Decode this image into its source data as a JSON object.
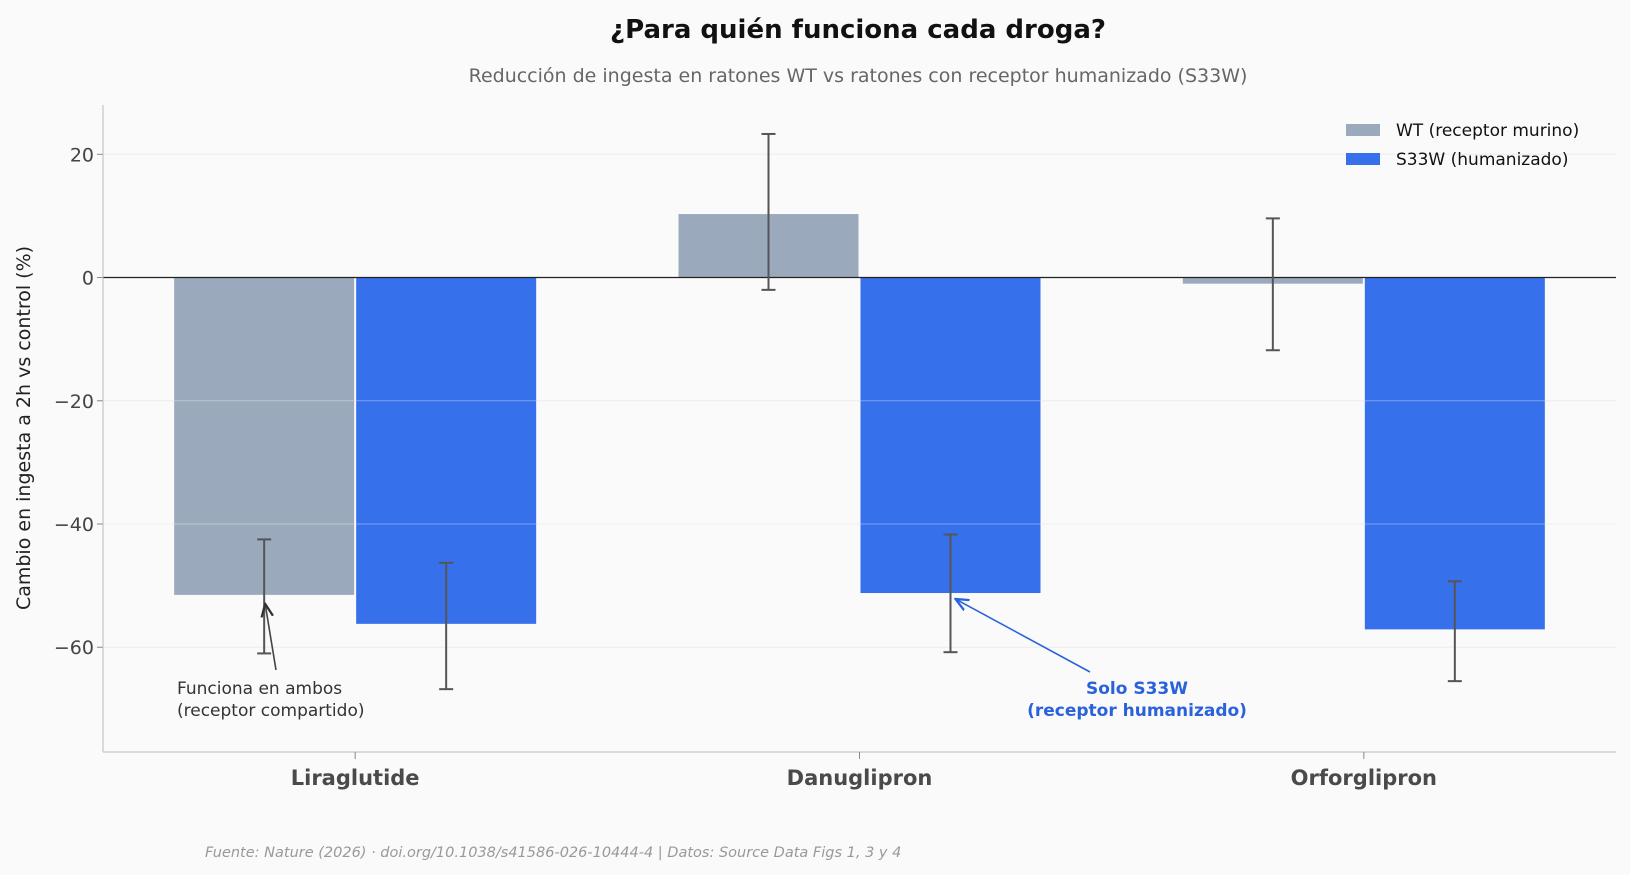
{
  "chart_data": {
    "type": "bar",
    "title": "¿Para quién funciona cada droga?",
    "subtitle": "Reducción de ingesta en ratones WT vs ratones con receptor humanizado (S33W)",
    "ylabel": "Cambio en ingesta a 2h vs control (%)",
    "xlabel": "",
    "categories": [
      "Liraglutide",
      "Danuglipron",
      "Orforglipron"
    ],
    "ylim": [
      -77,
      28
    ],
    "yticks": [
      20,
      0,
      -20,
      -40,
      -60
    ],
    "ytick_labels": [
      "20",
      "0",
      "−20",
      "−40",
      "−60"
    ],
    "grid": true,
    "legend_position": "top-right",
    "series": [
      {
        "name": "WT (receptor murino)",
        "color": "#9aa9bb",
        "values": [
          -51.5,
          10.3,
          -1.0
        ],
        "error_low": [
          -61.0,
          -2.0,
          -11.8
        ],
        "error_high": [
          -42.5,
          23.3,
          9.6
        ]
      },
      {
        "name": "S33W (humanizado)",
        "color": "#3670eb",
        "values": [
          -56.2,
          -51.2,
          -57.1
        ],
        "error_low": [
          -66.8,
          -60.8,
          -65.5
        ],
        "error_high": [
          -46.3,
          -41.7,
          -49.3
        ]
      }
    ],
    "annotations": [
      {
        "id": "liraglutide",
        "lines": [
          "Funciona en ambos",
          "(receptor compartido)"
        ],
        "color": "#333333"
      },
      {
        "id": "danuglipron",
        "lines": [
          "Solo S33W",
          "(receptor humanizado)"
        ],
        "color": "#2a62db"
      }
    ]
  },
  "footer": {
    "source": "Fuente: Nature (2026) · doi.org/10.1038/s41586-026-10444-4 | Datos: Source Data Figs 1, 3 y 4"
  }
}
